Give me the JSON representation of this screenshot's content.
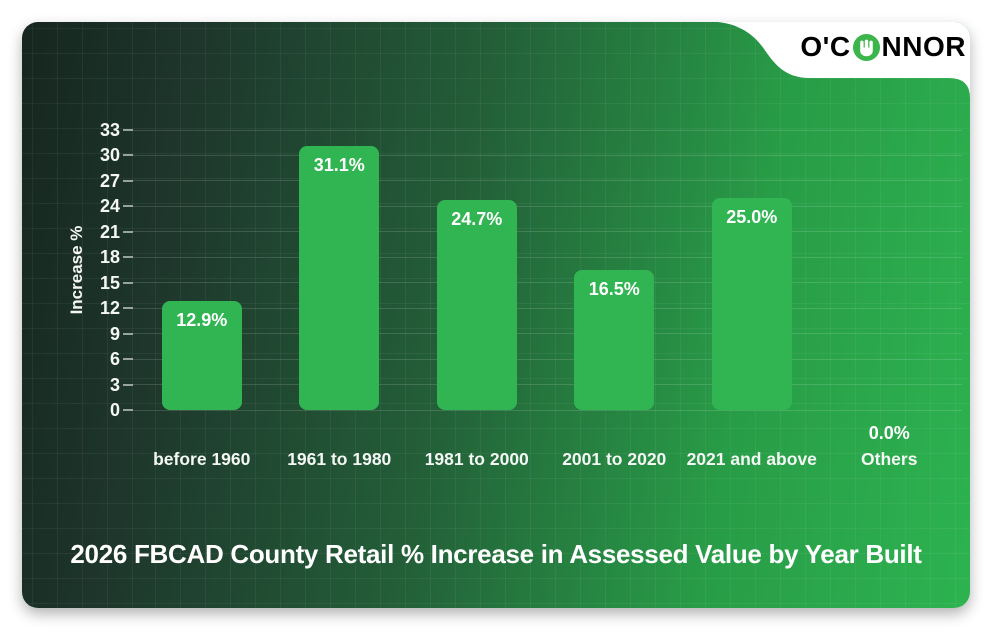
{
  "logo": {
    "text_pre": "O'C",
    "text_post": "NNOR",
    "color": "#3cb54a",
    "hand_icon": "hand-in-o-icon"
  },
  "title": "2026 FBCAD County Retail % Increase in Assessed Value by Year Built",
  "chart_data": {
    "type": "bar",
    "title": "2026 FBCAD County Retail % Increase in Assessed Value by Year Built",
    "categories": [
      "before 1960",
      "1961 to 1980",
      "1981 to 2000",
      "2001 to 2020",
      "2021 and above",
      "Others"
    ],
    "values": [
      12.9,
      31.1,
      24.7,
      16.5,
      25.0,
      0.0
    ],
    "value_labels": [
      "12.9%",
      "31.1%",
      "24.7%",
      "16.5%",
      "25.0%",
      "0.0%"
    ],
    "xlabel": "",
    "ylabel": "Increase %",
    "yticks": [
      0,
      3,
      6,
      9,
      12,
      15,
      18,
      21,
      24,
      27,
      30,
      33
    ],
    "ylim": [
      0,
      33
    ],
    "grid": true,
    "legend": false,
    "bar_color": "#31b552",
    "label_color": "#ffffff"
  },
  "colors": {
    "card_gradient_dark": "#16261f",
    "card_gradient_light": "#2db350",
    "accent_green": "#3cb54a",
    "text": "#f4f7f4"
  }
}
